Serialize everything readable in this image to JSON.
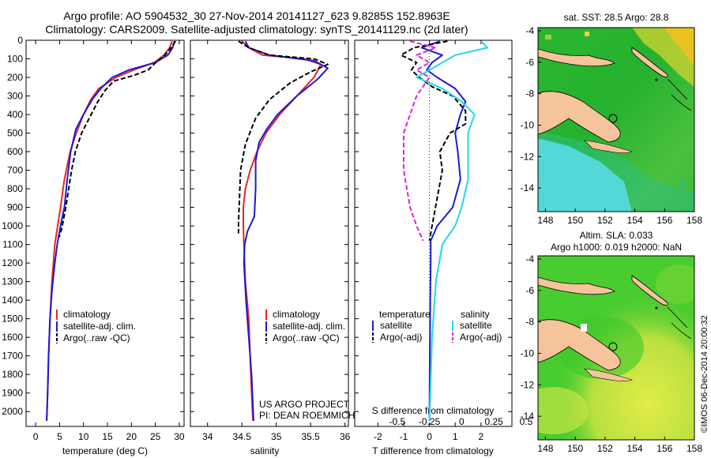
{
  "header": {
    "title_line1": "Argo profile: AO 5904532_30 27-Nov-2014 20141127_623 9.8285S 152.8963E",
    "title_line2": "Climatology: CARS2009. Satellite-adjusted climatology: synTS_20141129.nc (2d later)"
  },
  "credits": {
    "project": "US ARGO PROJECT",
    "pi": "PI: DEAN ROEMMICH"
  },
  "stamp": "©IMOS 06-Dec-2014 20:00:32",
  "colors": {
    "climatology": "#e8251f",
    "satellite": "#1a1ad8",
    "argo": "#000000",
    "salinity_sat": "#22d8e8",
    "salinity_argo": "#e020e0",
    "land": "#f5c49a"
  },
  "chart_data": [
    {
      "type": "line",
      "id": "temperature",
      "title": "",
      "xlabel": "temperature (deg C)",
      "ylabel": "",
      "xlim": [
        -2,
        31
      ],
      "ylim": [
        2080,
        0
      ],
      "xticks": [
        0,
        5,
        10,
        15,
        20,
        25,
        30
      ],
      "yticks": [
        0,
        100,
        200,
        300,
        400,
        500,
        600,
        700,
        800,
        900,
        1000,
        1100,
        1200,
        1300,
        1400,
        1500,
        1600,
        1700,
        1800,
        1900,
        2000
      ],
      "legend": [
        "climatology",
        "satellite-adj. clim.",
        "Argo(..raw -QC)"
      ],
      "series": [
        {
          "name": "climatology",
          "style": "solid",
          "color": "#e8251f",
          "x": [
            28.5,
            28.0,
            26.8,
            24.8,
            20.5,
            16.8,
            13.2,
            11.5,
            10.0,
            8.5,
            7.2,
            6.0,
            5.2,
            4.6,
            4.0,
            3.4,
            3.0,
            2.7,
            2.5,
            2.3
          ],
          "y": [
            5,
            40,
            80,
            120,
            160,
            200,
            260,
            320,
            400,
            500,
            600,
            750,
            900,
            1000,
            1100,
            1300,
            1500,
            1700,
            1900,
            2050
          ]
        },
        {
          "name": "satellite-adj. clim.",
          "style": "solid",
          "color": "#1a1ad8",
          "x": [
            29.0,
            28.6,
            27.6,
            25.0,
            19.5,
            16.0,
            13.6,
            11.8,
            10.0,
            8.4,
            7.3,
            6.6,
            6.0,
            5.2,
            4.5,
            4.0,
            3.4,
            3.0,
            2.7,
            2.5,
            2.3
          ],
          "y": [
            5,
            40,
            80,
            120,
            160,
            200,
            260,
            320,
            400,
            480,
            600,
            750,
            900,
            1000,
            1100,
            1200,
            1350,
            1500,
            1700,
            1900,
            2050
          ]
        },
        {
          "name": "Argo(..raw -QC)",
          "style": "dashed",
          "color": "#000000",
          "x": [
            29.2,
            28.3,
            27.0,
            25.1,
            23.5,
            20.4,
            16.3,
            14.5,
            13.0,
            11.6,
            9.6,
            8.3,
            7.5,
            6.9,
            6.3,
            5.7,
            5.4,
            4.9
          ],
          "y": [
            5,
            40,
            80,
            120,
            160,
            190,
            220,
            270,
            330,
            400,
            500,
            600,
            700,
            800,
            900,
            980,
            1020,
            1060
          ]
        }
      ]
    },
    {
      "type": "line",
      "id": "salinity",
      "xlabel": "salinity",
      "xlim": [
        33.75,
        36.05
      ],
      "ylim": [
        2080,
        0
      ],
      "xticks": [
        34,
        34.5,
        35,
        35.5,
        36
      ],
      "legend": [
        "climatology",
        "satellite-adj. clim.",
        "Argo(..raw -QC)"
      ],
      "series": [
        {
          "name": "climatology",
          "style": "solid",
          "color": "#e8251f",
          "x": [
            34.5,
            34.6,
            34.8,
            35.4,
            35.65,
            35.55,
            35.3,
            35.05,
            34.85,
            34.72,
            34.62,
            34.55,
            34.52,
            34.52,
            34.53,
            34.55,
            34.6,
            34.63,
            34.66
          ],
          "y": [
            5,
            40,
            80,
            100,
            130,
            200,
            300,
            400,
            500,
            600,
            700,
            800,
            900,
            1000,
            1100,
            1300,
            1500,
            1800,
            2050
          ]
        },
        {
          "name": "satellite-adj. clim.",
          "style": "solid",
          "color": "#1a1ad8",
          "x": [
            34.55,
            34.6,
            34.9,
            35.55,
            35.75,
            35.6,
            35.3,
            35.02,
            34.86,
            34.75,
            34.7,
            34.7,
            34.68,
            34.58,
            34.54,
            34.53,
            34.56,
            34.6,
            34.64,
            34.67
          ],
          "y": [
            5,
            40,
            80,
            110,
            150,
            210,
            300,
            400,
            480,
            550,
            650,
            800,
            950,
            1030,
            1100,
            1200,
            1400,
            1600,
            1800,
            2050
          ]
        },
        {
          "name": "Argo(..raw -QC)",
          "style": "dashed",
          "color": "#000000",
          "x": [
            34.45,
            34.6,
            34.9,
            35.55,
            35.75,
            35.5,
            35.2,
            34.9,
            34.7,
            34.55,
            34.48,
            34.47,
            34.46,
            34.45,
            34.45
          ],
          "y": [
            5,
            40,
            80,
            100,
            130,
            170,
            230,
            320,
            420,
            560,
            700,
            800,
            900,
            980,
            1040
          ]
        }
      ]
    },
    {
      "type": "line",
      "id": "difference",
      "xlabel": "T difference from climatology",
      "xlabel_top": "S difference from climatology",
      "xlim": [
        -2.9,
        3.2
      ],
      "ylim": [
        2080,
        0
      ],
      "xticks": [
        -2,
        -1,
        0,
        1,
        2
      ],
      "xticks_top": [
        -0.5,
        -0.25,
        0,
        0.25,
        0.5
      ],
      "legend_titles": [
        "temperature",
        "salinity"
      ],
      "legend": [
        "satellite",
        "Argo(-adj)",
        "satellite",
        "Argo(-adj)"
      ],
      "series": [
        {
          "name": "temperature satellite",
          "style": "solid",
          "color": "#1a1ad8",
          "x": [
            0.4,
            -0.3,
            0.5,
            0.1,
            -0.1,
            0.3,
            1.0,
            1.4,
            1.2,
            1.0,
            1.1,
            1.2,
            0.9,
            0.3,
            0.05,
            0.05,
            0.03,
            0.02,
            0.01,
            0.0
          ],
          "y": [
            5,
            40,
            80,
            120,
            160,
            200,
            260,
            330,
            400,
            500,
            600,
            750,
            900,
            1000,
            1080,
            1200,
            1400,
            1600,
            1800,
            2050
          ]
        },
        {
          "name": "temperature Argo(-adj)",
          "style": "dashed",
          "color": "#000000",
          "x": [
            0.7,
            -0.6,
            -1.1,
            -0.5,
            -0.7,
            -0.4,
            0.1,
            0.9,
            1.4,
            1.4,
            0.8,
            0.4,
            0.5,
            0.3,
            0.1,
            0.0
          ],
          "y": [
            5,
            40,
            80,
            120,
            160,
            200,
            250,
            300,
            380,
            450,
            500,
            600,
            700,
            850,
            1000,
            1080
          ]
        },
        {
          "name": "salinity satellite",
          "style": "solid",
          "color": "#22d8e8",
          "x": [
            0.4,
            0.45,
            0.2,
            0.1,
            0.0,
            -0.1,
            0.1,
            0.25,
            0.35,
            0.3,
            0.3,
            0.3,
            0.25,
            0.2,
            0.1,
            0.05,
            0.02,
            0.0
          ],
          "y": [
            5,
            40,
            80,
            120,
            160,
            200,
            260,
            330,
            400,
            500,
            600,
            750,
            900,
            1000,
            1100,
            1300,
            1600,
            2050
          ]
        },
        {
          "name": "salinity Argo(-adj)",
          "style": "dashed",
          "color": "#e020e0",
          "x": [
            -0.15,
            0.05,
            -0.1,
            0.0,
            -0.1,
            0.0,
            -0.1,
            -0.15,
            -0.2,
            -0.2,
            -0.15,
            -0.1,
            -0.05
          ],
          "y": [
            5,
            40,
            80,
            120,
            160,
            200,
            300,
            400,
            500,
            700,
            900,
            1000,
            1080
          ]
        }
      ]
    },
    {
      "type": "heatmap",
      "id": "sst_map",
      "title": "sat. SST: 28.5  Argo: 28.8",
      "xlim": [
        147.5,
        158
      ],
      "ylim": [
        -15.5,
        -3.8
      ],
      "xticks": [
        148,
        150,
        152,
        154,
        156,
        158
      ],
      "yticks": [
        -4,
        -6,
        -8,
        -10,
        -12,
        -14
      ],
      "argo_position": {
        "lon": 152.8963,
        "lat": -9.8285
      },
      "regions": [
        {
          "name": "open ocean",
          "value": "warm",
          "color": "#22b030"
        },
        {
          "name": "south-west",
          "value": "cool",
          "color": "#4fd8d0"
        },
        {
          "name": "north-east",
          "value": "hot",
          "color": "#f0d020"
        }
      ]
    },
    {
      "type": "heatmap",
      "id": "sla_map",
      "title": "Altim. SLA: 0.033",
      "subtitle": "Argo h1000: 0.019 h2000: NaN",
      "xlim": [
        147.5,
        158
      ],
      "ylim": [
        -15.5,
        -3.8
      ],
      "xticks": [
        148,
        150,
        152,
        154,
        156,
        158
      ],
      "yticks": [
        -4,
        -6,
        -8,
        -10,
        -12,
        -14
      ],
      "argo_position": {
        "lon": 152.8963,
        "lat": -9.8285
      },
      "regions": [
        {
          "name": "background",
          "value": "neutral",
          "color": "#44cc30"
        },
        {
          "name": "south-east",
          "value": "high",
          "color": "#d8e840"
        }
      ]
    }
  ]
}
